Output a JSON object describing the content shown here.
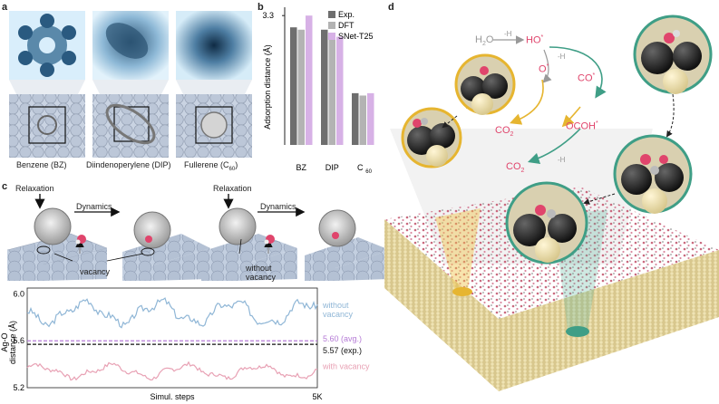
{
  "panels": {
    "a": "a",
    "b": "b",
    "c": "c",
    "d": "d"
  },
  "panel_a": {
    "molecules": [
      "Benzene (BZ)",
      "Diindenoperylene (DIP)",
      "Fullerene (C",
      "60",
      ")"
    ]
  },
  "chart_data": {
    "type": "bar",
    "categories": [
      "BZ",
      "DIP",
      "C60"
    ],
    "category_labels": [
      "BZ",
      "DIP",
      "C",
      "60"
    ],
    "series": [
      {
        "name": "Exp.",
        "values": [
          3.25,
          3.24,
          2.97
        ],
        "color": "#6e6e6e"
      },
      {
        "name": "DFT",
        "values": [
          3.24,
          3.22,
          2.96
        ],
        "color": "#b3b3b3"
      },
      {
        "name": "SNet-T25",
        "values": [
          3.3,
          3.21,
          2.97
        ],
        "color": "#d7b1e6"
      }
    ],
    "ytick_top": "3.3",
    "ylabel": "Adsorption distance (Å)",
    "ylim": [
      2.75,
      3.32
    ]
  },
  "panel_c": {
    "relaxation": "Relaxation",
    "dynamics": "Dynamics",
    "vacancy": "vacancy",
    "without_vacancy": "without\nvacancy",
    "plot": {
      "ylabel": "Ag-O\ndistance (Å)",
      "xlabel": "Simul. steps",
      "x_end_label": "5K",
      "yticks": [
        "6.0",
        "5.6",
        "5.2"
      ],
      "without_label": "without\nvacancy",
      "with_label": "with vacancy",
      "avg_label": "5.60 (avg.)",
      "exp_label": "5.57 (exp.)",
      "avg_value": 5.6,
      "exp_value": 5.57,
      "ylim": [
        5.2,
        6.05
      ],
      "without_color": "#8fb6d6",
      "with_color": "#e8a1b4",
      "avg_color": "#b57bd6"
    }
  },
  "panel_d": {
    "h2o": "H",
    "h2o_sub": "2",
    "h2o_end": "O",
    "minus_h1": "-H",
    "ho": "HO",
    "minus_h2": "-H",
    "o": "O",
    "co": "CO",
    "ocoh": "OCOH",
    "co2_left": "CO",
    "co2_left_sub": "2",
    "co2_right": "CO",
    "co2_right_sub": "2",
    "minus_h3": "-H",
    "dot": "*",
    "colors": {
      "red": "#e0456c",
      "gray": "#999999",
      "yellow": "#e6b530",
      "green": "#3f9e86"
    }
  }
}
